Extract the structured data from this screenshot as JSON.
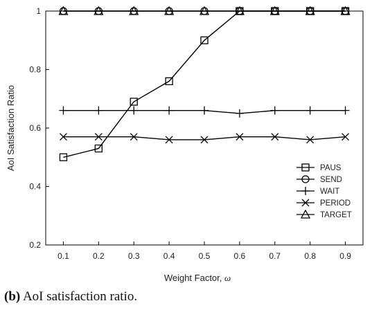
{
  "chart_data": {
    "type": "line",
    "xlabel": "Weight Factor, ",
    "xlabel_symbol": "ω",
    "ylabel": "AoI Satisfaction Ratio",
    "x": [
      0.1,
      0.2,
      0.3,
      0.4,
      0.5,
      0.6,
      0.7,
      0.8,
      0.9
    ],
    "x_ticks": [
      "0.1",
      "0.2",
      "0.3",
      "0.4",
      "0.5",
      "0.6",
      "0.7",
      "0.8",
      "0.9"
    ],
    "xlim": [
      0.05,
      0.95
    ],
    "ylim": [
      0.2,
      1.0
    ],
    "y_ticks": [
      "0.2",
      "0.4",
      "0.6",
      "0.8",
      "1"
    ],
    "y_tick_values": [
      0.2,
      0.4,
      0.6,
      0.8,
      1.0
    ],
    "grid": false,
    "legend_position": "right",
    "series": [
      {
        "name": "PAUS",
        "marker": "square",
        "values": [
          0.5,
          0.53,
          0.69,
          0.76,
          0.9,
          1.0,
          1.0,
          1.0,
          1.0
        ]
      },
      {
        "name": "SEND",
        "marker": "circle",
        "values": [
          1.0,
          1.0,
          1.0,
          1.0,
          1.0,
          1.0,
          1.0,
          1.0,
          1.0
        ]
      },
      {
        "name": "WAIT",
        "marker": "plus",
        "values": [
          0.66,
          0.66,
          0.66,
          0.66,
          0.66,
          0.65,
          0.66,
          0.66,
          0.66
        ]
      },
      {
        "name": "PERIOD",
        "marker": "cross",
        "values": [
          0.57,
          0.57,
          0.57,
          0.56,
          0.56,
          0.57,
          0.57,
          0.56,
          0.57
        ]
      },
      {
        "name": "TARGET",
        "marker": "triangle",
        "values": [
          1.0,
          1.0,
          1.0,
          1.0,
          1.0,
          1.0,
          1.0,
          1.0,
          1.0
        ]
      }
    ]
  },
  "caption": {
    "tag": "(b)",
    "text": "AoI satisfaction ratio."
  },
  "colors": {
    "line": "#000000",
    "axis": "#000000",
    "background": "#ffffff"
  }
}
